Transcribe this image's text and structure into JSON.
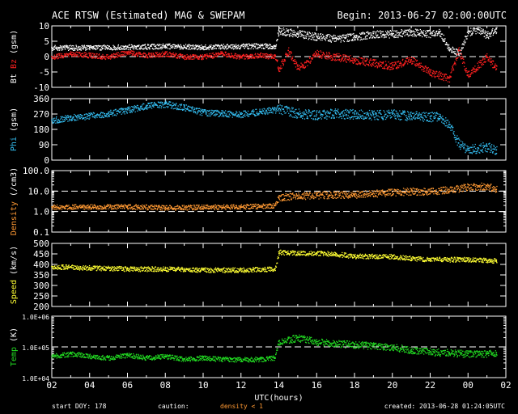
{
  "header": {
    "title": "ACE RTSW (Estimated) MAG & SWEPAM",
    "begin": "Begin: 2013-06-27 02:00:00UTC"
  },
  "footer": {
    "start_doy": "start DOY: 178",
    "caution": "caution:",
    "density_note": "density < 1",
    "created": "created: 2013-06-28 01:24:05UTC"
  },
  "colors": {
    "background": "#000000",
    "bt": "#ffffff",
    "bz": "#ff2020",
    "phi": "#33bbee",
    "density": "#ff9933",
    "speed": "#ffff33",
    "temp": "#22dd22",
    "axis": "#ffffff",
    "caution_text": "#ff9933"
  },
  "chart_data": {
    "type": "scatter",
    "xlabel": "UTC(hours)",
    "x_tick_labels": [
      "02",
      "04",
      "06",
      "08",
      "10",
      "12",
      "14",
      "16",
      "18",
      "20",
      "22",
      "00",
      "02"
    ],
    "x_range_hours": [
      2,
      26
    ],
    "panels": [
      {
        "id": "mag",
        "ylabel_parts": [
          {
            "text": "Bt",
            "color": "#ffffff"
          },
          {
            "text": " Bz",
            "color": "#ff2020"
          },
          {
            "text": " (gsm)",
            "color": "#ffffff"
          }
        ],
        "ylim": [
          -10,
          10
        ],
        "ticks": [
          -10,
          -5,
          0,
          5,
          10
        ],
        "tick_labels": [
          "-10",
          "-5",
          "0",
          "5",
          "10"
        ],
        "dashed_ref": [
          0
        ],
        "scale": "linear",
        "series": [
          {
            "name": "Bt",
            "color": "#ffffff",
            "x": [
              2,
              4,
              6,
              8,
              10,
              12,
              13.8,
              14,
              15,
              16,
              17,
              18,
              19,
              20,
              21,
              22,
              22.5,
              23,
              23.5,
              24,
              24.5,
              25,
              25.5
            ],
            "y": [
              3,
              3,
              3.2,
              3.5,
              3.2,
              3.5,
              3.5,
              8.5,
              7.5,
              6.5,
              6,
              6.5,
              7.5,
              7.5,
              8,
              7.5,
              8,
              3,
              1,
              8,
              9,
              7,
              9
            ]
          },
          {
            "name": "Bz",
            "color": "#ff2020",
            "x": [
              2,
              3,
              4,
              5,
              6,
              7,
              8,
              9,
              10,
              11,
              12,
              13,
              13.8,
              14,
              14.5,
              15,
              16,
              17,
              18,
              19,
              20,
              21,
              22,
              23,
              23.5,
              24,
              25,
              25.5
            ],
            "y": [
              0,
              1,
              0.5,
              0,
              1.5,
              0.5,
              1,
              0,
              0,
              1,
              0,
              0.5,
              0,
              -4,
              2,
              -4,
              1,
              0,
              -1,
              -2,
              -3,
              -1,
              -5,
              -7,
              2,
              -6,
              0,
              -4
            ]
          }
        ]
      },
      {
        "id": "phi",
        "ylabel_parts": [
          {
            "text": "Phi",
            "color": "#33bbee"
          },
          {
            "text": " (gsm)",
            "color": "#ffffff"
          }
        ],
        "ylim": [
          0,
          360
        ],
        "ticks": [
          0,
          90,
          180,
          270,
          360
        ],
        "tick_labels": [
          "0",
          "90",
          "180",
          "270",
          "360"
        ],
        "dashed_ref": [],
        "scale": "linear",
        "series": [
          {
            "name": "Phi",
            "color": "#33bbee",
            "x": [
              2,
              3,
              4,
              5,
              6,
              7,
              8,
              9,
              10,
              11,
              12,
              13,
              14,
              15,
              16,
              17,
              18,
              19,
              20,
              21,
              22,
              22.5,
              23,
              23.5,
              24,
              25,
              25.5
            ],
            "y": [
              235,
              250,
              260,
              275,
              295,
              320,
              330,
              310,
              280,
              275,
              270,
              285,
              300,
              275,
              265,
              275,
              270,
              265,
              270,
              260,
              255,
              255,
              210,
              100,
              60,
              80,
              60
            ]
          }
        ]
      },
      {
        "id": "density",
        "ylabel_parts": [
          {
            "text": "Density",
            "color": "#ff9933"
          },
          {
            "text": " (/cm3)",
            "color": "#ffffff"
          }
        ],
        "ylim": [
          0.1,
          100
        ],
        "ticks": [
          0.1,
          1,
          10,
          100
        ],
        "tick_labels": [
          "0.1",
          "1.0",
          "10.0",
          "100.0"
        ],
        "dashed_ref": [
          1,
          10
        ],
        "scale": "log",
        "series": [
          {
            "name": "Density",
            "color": "#ff9933",
            "x": [
              2,
              4,
              6,
              8,
              10,
              12,
              13.8,
              14,
              15,
              16,
              17,
              18,
              19,
              20,
              21,
              22,
              23,
              24,
              25,
              25.5
            ],
            "y": [
              1.7,
              1.8,
              1.8,
              1.6,
              1.7,
              1.8,
              2,
              5,
              6,
              6.5,
              7,
              7,
              8,
              9,
              10,
              10,
              12,
              16,
              18,
              12
            ]
          }
        ]
      },
      {
        "id": "speed",
        "ylabel_parts": [
          {
            "text": "Speed",
            "color": "#ffff33"
          },
          {
            "text": " (km/s)",
            "color": "#ffffff"
          }
        ],
        "ylim": [
          200,
          500
        ],
        "ticks": [
          200,
          250,
          300,
          350,
          400,
          450,
          500
        ],
        "tick_labels": [
          "200",
          "250",
          "300",
          "350",
          "400",
          "450",
          "500"
        ],
        "dashed_ref": [],
        "scale": "linear",
        "series": [
          {
            "name": "Speed",
            "color": "#ffff33",
            "x": [
              2,
              4,
              6,
              8,
              10,
              12,
              13.8,
              14,
              15,
              16,
              17,
              18,
              19,
              20,
              21,
              22,
              23,
              24,
              25,
              25.5
            ],
            "y": [
              390,
              385,
              380,
              380,
              375,
              375,
              380,
              460,
              455,
              455,
              450,
              440,
              440,
              440,
              430,
              425,
              425,
              425,
              420,
              420
            ]
          }
        ]
      },
      {
        "id": "temp",
        "ylabel_parts": [
          {
            "text": "Temp",
            "color": "#22dd22"
          },
          {
            "text": " (K)",
            "color": "#ffffff"
          }
        ],
        "ylim": [
          10000,
          1000000
        ],
        "ticks": [
          10000,
          100000,
          1000000
        ],
        "tick_labels": [
          "1.0E+04",
          "1.0E+05",
          "1.0E+06"
        ],
        "dashed_ref": [
          100000
        ],
        "scale": "log",
        "series": [
          {
            "name": "Temp",
            "color": "#22dd22",
            "x": [
              2,
              3,
              4,
              5,
              6,
              7,
              8,
              9,
              10,
              11,
              12,
              13,
              13.8,
              14,
              15,
              16,
              17,
              18,
              19,
              20,
              21,
              22,
              23,
              24,
              25,
              25.5
            ],
            "y": [
              50000,
              60000,
              50000,
              45000,
              55000,
              45000,
              50000,
              40000,
              45000,
              40000,
              40000,
              40000,
              45000,
              150000,
              200000,
              150000,
              130000,
              120000,
              110000,
              100000,
              80000,
              70000,
              65000,
              60000,
              60000,
              65000
            ]
          }
        ]
      }
    ]
  }
}
